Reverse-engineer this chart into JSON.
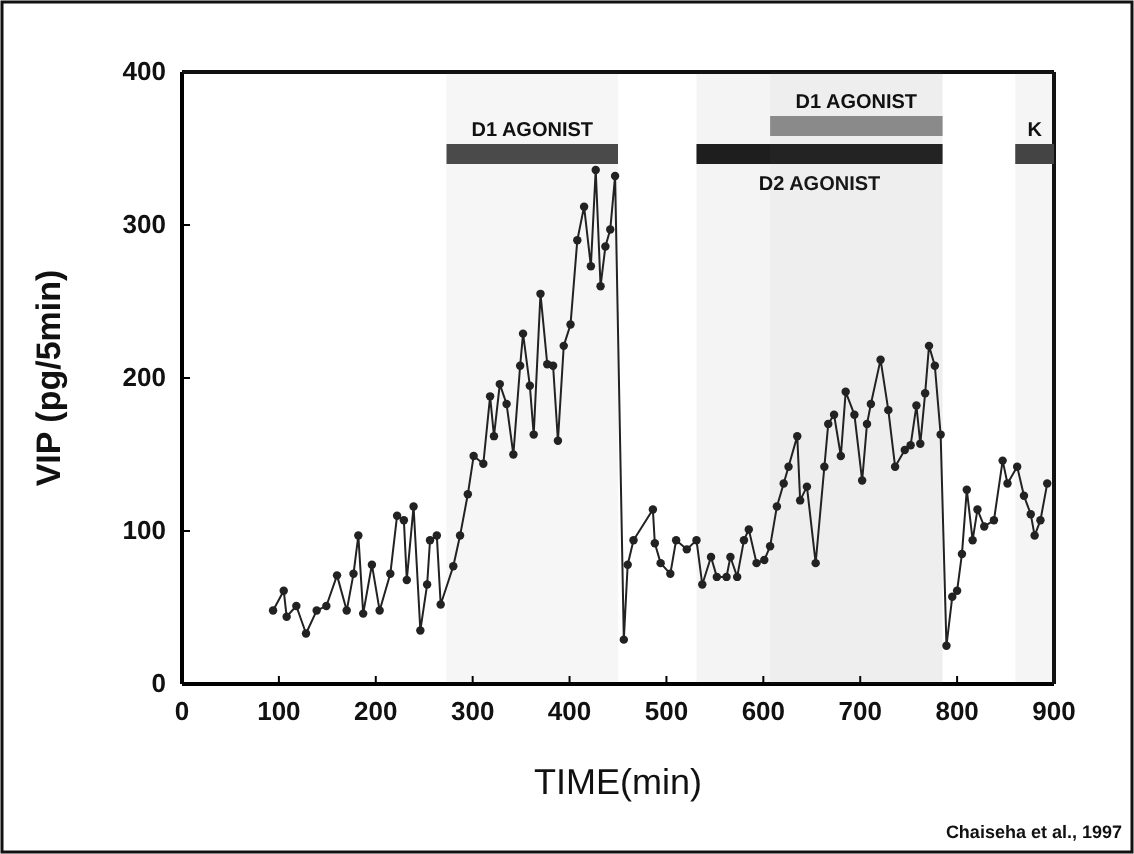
{
  "chart_data": {
    "type": "line",
    "xlabel": "TIME(min)",
    "ylabel": "VIP (pg/5min)",
    "xlim": [
      0,
      900
    ],
    "xticks": [
      0,
      100,
      200,
      300,
      400,
      500,
      600,
      700,
      800,
      900
    ],
    "ylim": [
      0,
      400
    ],
    "yticks": [
      0,
      100,
      200,
      300,
      400
    ],
    "marker": "circle",
    "grid": false,
    "series": [
      {
        "color": "#222222",
        "x": [
          94,
          105,
          108,
          118,
          128,
          139,
          149,
          160,
          170,
          177,
          182,
          187,
          196,
          204,
          215,
          222,
          229,
          232,
          239,
          246,
          253,
          256,
          263,
          267,
          280,
          287,
          295,
          301,
          311,
          318,
          322,
          328,
          335,
          342,
          349,
          352,
          359,
          363,
          370,
          377,
          383,
          388,
          394,
          401,
          408,
          415,
          422,
          427,
          432,
          437,
          442,
          447,
          456,
          460,
          466,
          486,
          488,
          494,
          504,
          510,
          521,
          531,
          537,
          546,
          552,
          562,
          566,
          573,
          580,
          585,
          593,
          601,
          607,
          614,
          621,
          626,
          635,
          638,
          645,
          654,
          663,
          667,
          673,
          680,
          685,
          694,
          702,
          707,
          711,
          721,
          729,
          736,
          746,
          752,
          758,
          762,
          767,
          771,
          777,
          783,
          789,
          795,
          800,
          805,
          810,
          816,
          821,
          828,
          838,
          847,
          852,
          862,
          869,
          876,
          880,
          886,
          893
        ],
        "values": [
          48,
          61,
          44,
          51,
          33,
          48,
          51,
          71,
          48,
          72,
          97,
          46,
          78,
          48,
          72,
          110,
          107,
          68,
          116,
          35,
          65,
          94,
          97,
          52,
          77,
          97,
          124,
          149,
          144,
          188,
          162,
          196,
          183,
          150,
          208,
          229,
          195,
          163,
          255,
          209,
          208,
          159,
          221,
          235,
          290,
          312,
          273,
          336,
          260,
          286,
          297,
          332,
          29,
          78,
          94,
          114,
          92,
          79,
          72,
          94,
          88,
          94,
          65,
          83,
          70,
          70,
          83,
          70,
          94,
          101,
          79,
          81,
          90,
          116,
          131,
          142,
          162,
          120,
          129,
          79,
          142,
          170,
          176,
          149,
          191,
          176,
          133,
          170,
          183,
          212,
          179,
          142,
          153,
          156,
          182,
          157,
          190,
          221,
          208,
          163,
          25,
          57,
          61,
          85,
          127,
          94,
          114,
          103,
          107,
          146,
          131,
          142,
          123,
          111,
          97,
          107,
          131
        ]
      }
    ],
    "bands": [
      {
        "axis": "x",
        "from": 273,
        "to": 450,
        "label": "D1 AGONIST",
        "color": "#4a4a4a"
      },
      {
        "axis": "x",
        "from": 531,
        "to": 785,
        "label": "D2 AGONIST",
        "color": "#1e1e1e"
      },
      {
        "axis": "x",
        "from": 607,
        "to": 785,
        "label": "D1 AGONIST",
        "color": "#8a8a8a"
      },
      {
        "axis": "x",
        "from": 860,
        "to": 900,
        "label": "K",
        "color": "#444444"
      }
    ],
    "annotations": [
      "Chaiseha et al., 1997"
    ]
  }
}
